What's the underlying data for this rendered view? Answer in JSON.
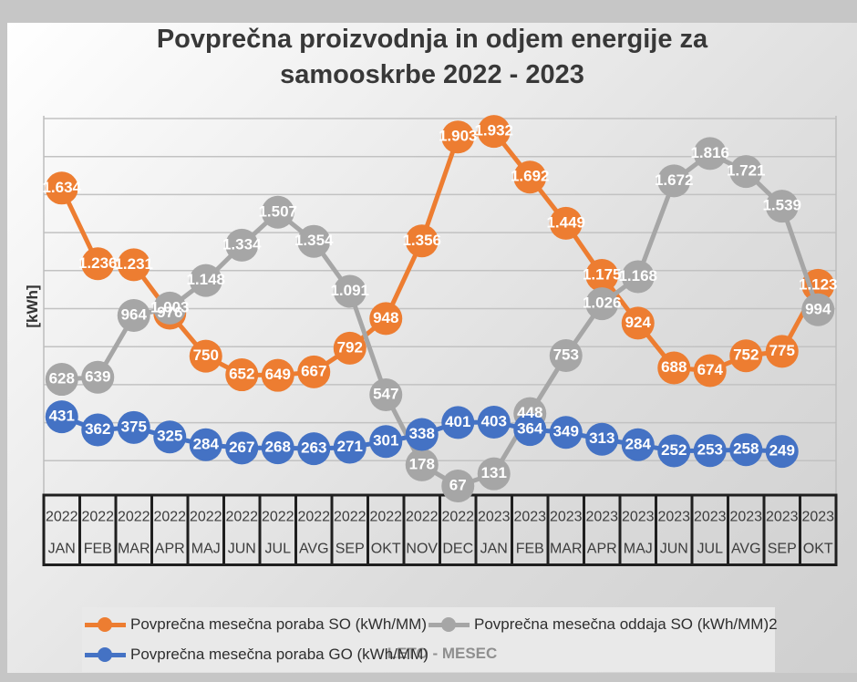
{
  "title": {
    "line1": "Povprečna proizvodnja in odjem energije za",
    "line2": "samooskrbe 2022 - 2023"
  },
  "axes": {
    "y_title": "[kWh]",
    "x_title": "LETO - MESEC"
  },
  "legend": {
    "entries": [
      {
        "label": "Povprečna mesečna poraba SO (kWh/MM)",
        "color": "#ED7D31"
      },
      {
        "label": "Povprečna mesečna oddaja SO (kWh/MM)2",
        "color": "#A6A6A6"
      },
      {
        "label": "Povprečna mesečna poraba GO (kWh/MM)",
        "color": "#4472C4"
      }
    ]
  },
  "colors": {
    "gridline": "#c2c2c2",
    "plot_border": "#bdbdbd",
    "axis_table_border": "#1f1f1f",
    "axis_text": "#3c3c3c",
    "data_label": "#ffffff"
  },
  "chart_data": {
    "type": "line",
    "title": "Povprečna proizvodnja in odjem energije za samooskrbe 2022 - 2023",
    "xlabel": "LETO - MESEC",
    "ylabel": "[kWh]",
    "ylim": [
      0,
      2000
    ],
    "grid_step": 200,
    "grid_on": true,
    "legend_position": "bottom",
    "categories_year": [
      "2022",
      "2022",
      "2022",
      "2022",
      "2022",
      "2022",
      "2022",
      "2022",
      "2022",
      "2022",
      "2022",
      "2022",
      "2023",
      "2023",
      "2023",
      "2023",
      "2023",
      "2023",
      "2023",
      "2023",
      "2023",
      "2023"
    ],
    "categories_month": [
      "JAN",
      "FEB",
      "MAR",
      "APR",
      "MAJ",
      "JUN",
      "JUL",
      "AVG",
      "SEP",
      "OKT",
      "NOV",
      "DEC",
      "JAN",
      "FEB",
      "MAR",
      "APR",
      "MAJ",
      "JUN",
      "JUL",
      "AVG",
      "SEP",
      "OKT"
    ],
    "series": [
      {
        "name": "Povprečna mesečna poraba SO (kWh/MM)",
        "slug": "poraba-so",
        "color": "#ED7D31",
        "values": [
          1634,
          1236,
          1231,
          976,
          750,
          652,
          649,
          667,
          792,
          948,
          1356,
          1903,
          1932,
          1692,
          1449,
          1175,
          924,
          688,
          674,
          752,
          775,
          1123
        ],
        "labels": [
          "1.634",
          "1.236",
          "1.231",
          "976",
          "750",
          "652",
          "649",
          "667",
          "792",
          "948",
          "1.356",
          "1.903",
          "1.932",
          "1.692",
          "1.449",
          "1.175",
          "924",
          "688",
          "674",
          "752",
          "775",
          "1.123"
        ]
      },
      {
        "name": "Povprečna mesečna oddaja SO (kWh/MM)2",
        "slug": "oddaja-so",
        "color": "#A6A6A6",
        "values": [
          628,
          639,
          964,
          1003,
          1148,
          1334,
          1507,
          1354,
          1091,
          547,
          178,
          67,
          131,
          448,
          753,
          1026,
          1168,
          1672,
          1816,
          1721,
          1539,
          994
        ],
        "labels": [
          "628",
          "639",
          "964",
          "1.003",
          "1.148",
          "1.334",
          "1.507",
          "1.354",
          "1.091",
          "547",
          "178",
          "67",
          "131",
          "448",
          "753",
          "1.026",
          "1.168",
          "1.672",
          "1.816",
          "1.721",
          "1.539",
          "994"
        ]
      },
      {
        "name": "Povprečna mesečna poraba GO (kWh/MM)",
        "slug": "poraba-go",
        "color": "#4472C4",
        "values": [
          431,
          362,
          375,
          325,
          284,
          267,
          268,
          263,
          271,
          301,
          338,
          401,
          403,
          364,
          349,
          313,
          284,
          252,
          253,
          258,
          249
        ],
        "labels": [
          "431",
          "362",
          "375",
          "325",
          "284",
          "267",
          "268",
          "263",
          "271",
          "301",
          "338",
          "401",
          "403",
          "364",
          "349",
          "313",
          "284",
          "252",
          "253",
          "258",
          "249"
        ]
      }
    ]
  }
}
